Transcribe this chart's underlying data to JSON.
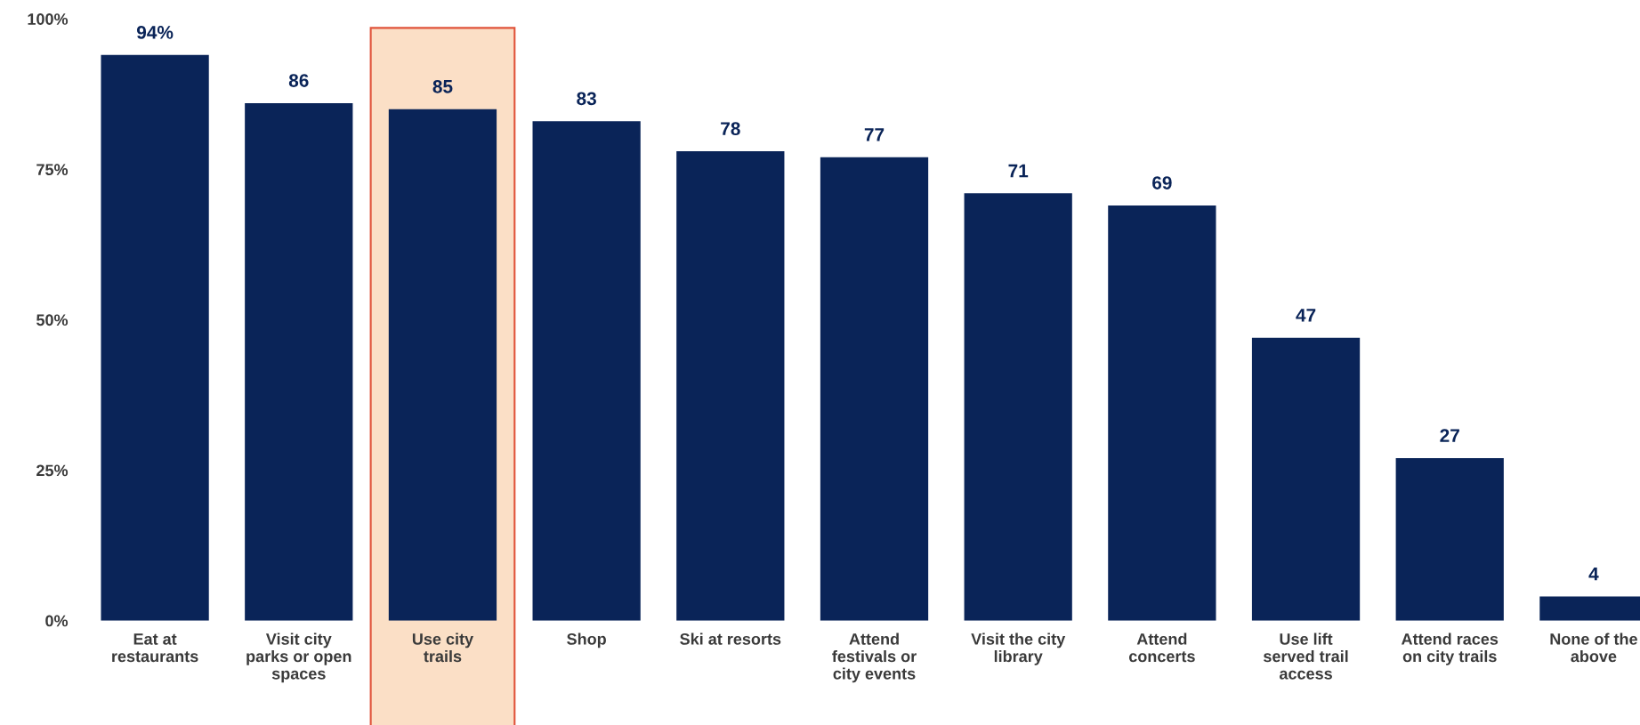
{
  "chart_data": {
    "type": "bar",
    "categories": [
      "Eat at\nrestaurants",
      "Visit city\nparks or open\nspaces",
      "Use city\ntrails",
      "Shop",
      "Ski at resorts",
      "Attend\nfestivals or\ncity events",
      "Visit the city\nlibrary",
      "Attend\nconcerts",
      "Use lift\nserved trail\naccess",
      "Attend races\non city trails",
      "None of the\nabove"
    ],
    "values": [
      94,
      86,
      85,
      83,
      78,
      77,
      71,
      69,
      47,
      27,
      4
    ],
    "value_labels": [
      "94%",
      "86",
      "85",
      "83",
      "78",
      "77",
      "71",
      "69",
      "47",
      "27",
      "4"
    ],
    "color": "#0a2458",
    "ylim": [
      0,
      100
    ],
    "yticks": [
      {
        "value": 0,
        "label": "0%"
      },
      {
        "value": 25,
        "label": "25%"
      },
      {
        "value": 50,
        "label": "50%"
      },
      {
        "value": 75,
        "label": "75%"
      },
      {
        "value": 100,
        "label": "100%"
      }
    ],
    "grid": false,
    "bands": [
      {
        "axis": "x",
        "from": "Use city\ntrails",
        "to": "Use city\ntrails",
        "color": "#fbdfc6"
      }
    ]
  }
}
